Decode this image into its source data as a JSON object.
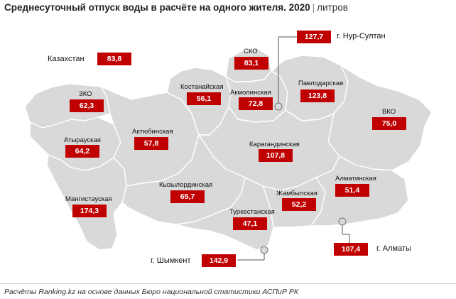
{
  "title": {
    "main": "Среднесуточный отпуск воды в расчёте на одного жителя. 2020",
    "separator": "|",
    "unit": "литров"
  },
  "country": {
    "label": "Казахстан",
    "value": "83,8"
  },
  "regions": {
    "zko": {
      "label": "ЗКО",
      "value": "62,3"
    },
    "atyrau": {
      "label": "Атырауская",
      "value": "64,2"
    },
    "mangystau": {
      "label": "Мангистауская",
      "value": "174,3"
    },
    "aktobe": {
      "label": "Актюбинская",
      "value": "57,8"
    },
    "kostanay": {
      "label": "Костанайская",
      "value": "56,1"
    },
    "sko": {
      "label": "СКО",
      "value": "83,1"
    },
    "akmola": {
      "label": "Акмолинская",
      "value": "72,8"
    },
    "pavlodar": {
      "label": "Павлодарская",
      "value": "123,8"
    },
    "vko": {
      "label": "ВКО",
      "value": "75,0"
    },
    "karaganda": {
      "label": "Карагандинская",
      "value": "107,8"
    },
    "kyzylorda": {
      "label": "Кызылординская",
      "value": "65,7"
    },
    "zhambyl": {
      "label": "Жамбылская",
      "value": "52,2"
    },
    "almaty_region": {
      "label": "Алматинская",
      "value": "51,4"
    },
    "turkestan": {
      "label": "Туркестанская",
      "value": "47,1"
    }
  },
  "cities": {
    "nur_sultan": {
      "label": "г. Нур-Султан",
      "value": "127,7"
    },
    "almaty": {
      "label": "г. Алматы",
      "value": "107,4"
    },
    "shymkent": {
      "label": "г. Шымкент",
      "value": "142,9"
    }
  },
  "footer": "Расчёты Ranking.kz на основе данных Бюро национальной статистики АСПиР РК",
  "colors": {
    "region_fill": "#d9d9d9",
    "value_box": "#c00000",
    "border": "#ffffff"
  }
}
